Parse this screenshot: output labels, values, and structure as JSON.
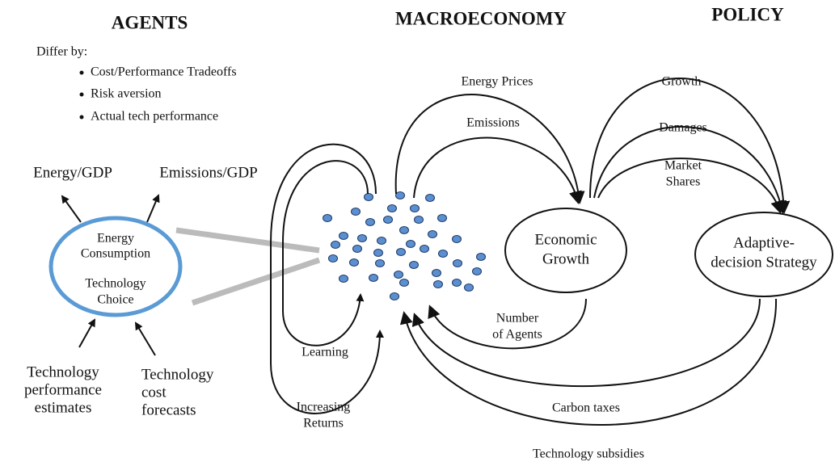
{
  "headers": {
    "agents": "AGENTS",
    "macroeconomy": "MACROECONOMY",
    "policy": "POLICY"
  },
  "differ": {
    "title": "Differ by:",
    "items": [
      "Cost/Performance Tradeoffs",
      "Risk aversion",
      "Actual tech performance"
    ]
  },
  "outputs": {
    "energy_gdp": "Energy/GDP",
    "emissions_gdp": "Emissions/GDP"
  },
  "agent_circle": {
    "top": [
      "Energy",
      "Consumption"
    ],
    "bottom": [
      "Technology",
      "Choice"
    ]
  },
  "inputs": {
    "performance": [
      "Technology",
      "performance",
      "estimates"
    ],
    "cost": [
      "Technology",
      "cost",
      "forecasts"
    ]
  },
  "flows": {
    "energy_prices": "Energy Prices",
    "emissions": "Emissions",
    "growth": "Growth",
    "damages": "Damages",
    "market_shares": [
      "Market",
      "Shares"
    ],
    "number_of_agents": [
      "Number",
      "of Agents"
    ],
    "learning": "Learning",
    "increasing_returns": [
      "Increasing",
      "Returns"
    ],
    "carbon_taxes": "Carbon taxes",
    "technology_subsidies": "Technology subsidies"
  },
  "nodes": {
    "economic_growth": [
      "Economic",
      "Growth"
    ],
    "adaptive": [
      "Adaptive-",
      "decision Strategy"
    ]
  }
}
